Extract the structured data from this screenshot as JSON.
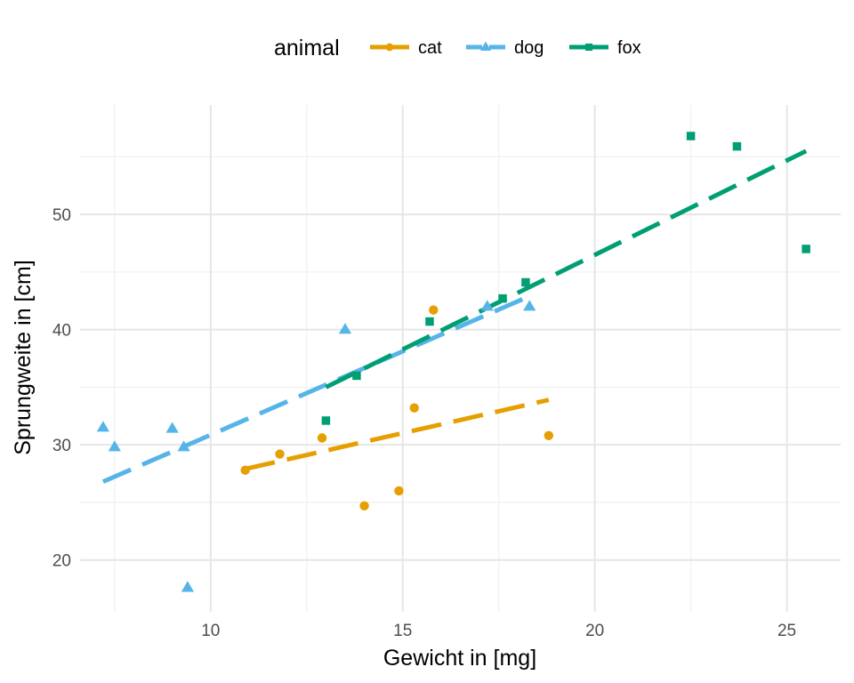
{
  "chart_data": {
    "type": "scatter",
    "title": "",
    "xlabel": "Gewicht in [mg]",
    "ylabel": "Sprungweite in [cm]",
    "xlim": [
      6.6,
      26.4
    ],
    "ylim": [
      15.5,
      59.5
    ],
    "x_ticks": [
      10,
      15,
      20,
      25
    ],
    "y_ticks": [
      20,
      30,
      40,
      50
    ],
    "x_tick_labels": [
      "10",
      "15",
      "20",
      "25"
    ],
    "y_tick_labels": [
      "20",
      "30",
      "40",
      "50"
    ],
    "grid": true,
    "legend": {
      "title": "animal",
      "position": "top"
    },
    "series": [
      {
        "name": "cat",
        "color": "#E69F00",
        "marker": "circle",
        "points": [
          [
            10.9,
            27.8
          ],
          [
            11.8,
            29.2
          ],
          [
            12.9,
            30.6
          ],
          [
            14.0,
            24.7
          ],
          [
            14.9,
            26.0
          ],
          [
            15.3,
            33.2
          ],
          [
            15.8,
            41.7
          ],
          [
            18.8,
            30.8
          ]
        ],
        "trend": {
          "x": [
            10.9,
            18.8
          ],
          "y": [
            27.9,
            33.9
          ]
        }
      },
      {
        "name": "dog",
        "color": "#56B4E9",
        "marker": "triangle",
        "points": [
          [
            7.2,
            31.5
          ],
          [
            7.5,
            29.8
          ],
          [
            9.0,
            31.4
          ],
          [
            9.3,
            29.8
          ],
          [
            9.4,
            17.6
          ],
          [
            13.5,
            40.0
          ],
          [
            17.2,
            42.0
          ],
          [
            18.3,
            42.0
          ]
        ],
        "trend": {
          "x": [
            7.2,
            18.3
          ],
          "y": [
            26.8,
            42.9
          ]
        }
      },
      {
        "name": "fox",
        "color": "#009E73",
        "marker": "square",
        "points": [
          [
            13.0,
            32.1
          ],
          [
            13.8,
            36.0
          ],
          [
            15.7,
            40.7
          ],
          [
            17.6,
            42.7
          ],
          [
            18.2,
            44.1
          ],
          [
            22.5,
            56.8
          ],
          [
            23.7,
            55.9
          ],
          [
            25.5,
            47.0
          ]
        ],
        "trend": {
          "x": [
            13.0,
            25.5
          ],
          "y": [
            35.0,
            55.5
          ]
        }
      }
    ]
  }
}
